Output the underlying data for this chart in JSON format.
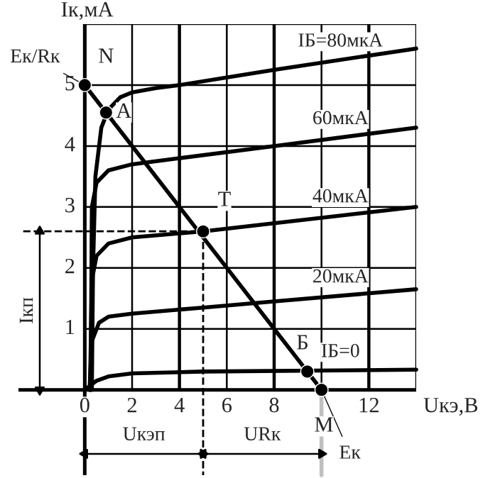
{
  "chart_data": {
    "type": "line",
    "xlabel": "Uкэ,В",
    "ylabel": "Iк,мА",
    "xlim": [
      -2.8,
      14
    ],
    "ylim": [
      -1.4,
      6
    ],
    "xticks": [
      0,
      2,
      4,
      6,
      8,
      {
        "value": 10,
        "label": null
      },
      12,
      {
        "value": 14,
        "label": null
      }
    ],
    "yticks": [
      {
        "value": 0,
        "label": null
      },
      1,
      2,
      3,
      4,
      5,
      {
        "value": 6,
        "label": null
      }
    ],
    "grid": true,
    "marker": "none",
    "line_style": "solid",
    "series": [
      {
        "name": "IБ=80мкА",
        "color": "#000000",
        "x": [
          0.3,
          0.35,
          0.45,
          0.7,
          1,
          1.5,
          2,
          3,
          4,
          8,
          14
        ],
        "values": [
          0,
          2,
          3.5,
          4.3,
          4.6,
          4.8,
          4.88,
          4.95,
          5.0,
          5.25,
          5.6
        ]
      },
      {
        "name": "60мкА",
        "color": "#000000",
        "x": [
          0.25,
          0.3,
          0.5,
          1,
          2,
          4,
          8,
          14
        ],
        "values": [
          0,
          3,
          3.4,
          3.6,
          3.7,
          3.8,
          4.0,
          4.3
        ]
      },
      {
        "name": "40мкА",
        "color": "#000000",
        "x": [
          0.22,
          0.3,
          0.5,
          1,
          2,
          5,
          14
        ],
        "values": [
          0,
          1.8,
          2.2,
          2.4,
          2.5,
          2.6,
          3.0
        ]
      },
      {
        "name": "20мкА",
        "color": "#000000",
        "x": [
          0.2,
          0.3,
          0.6,
          1,
          2,
          5,
          8,
          14
        ],
        "values": [
          0,
          0.8,
          1.1,
          1.2,
          1.25,
          1.35,
          1.45,
          1.65
        ]
      },
      {
        "name": "IБ=0",
        "color": "#000000",
        "x": [
          0,
          0.5,
          1,
          2,
          5,
          14
        ],
        "values": [
          0,
          0.15,
          0.22,
          0.27,
          0.3,
          0.33
        ]
      },
      {
        "color": "#000000",
        "x": [
          0,
          10
        ],
        "values": [
          5,
          0
        ]
      },
      {
        "type": "scatter",
        "marker": "circle",
        "color": "#000000",
        "x": [
          0,
          0.9,
          5,
          9.4,
          10
        ],
        "values": [
          5,
          4.55,
          2.6,
          0.3,
          0
        ]
      },
      {
        "line_style": "dashed",
        "color": "#000000",
        "x": [
          -2.6,
          5
        ],
        "values": [
          2.6,
          2.6
        ]
      },
      {
        "line_style": "dashed",
        "color": "#000000",
        "x": [
          5,
          5
        ],
        "values": [
          2.6,
          -1.4
        ]
      },
      {
        "color": "#c0c0c0",
        "x": [
          10,
          10
        ],
        "values": [
          0,
          -1.4
        ]
      },
      {
        "marker": "triangle",
        "color": "#000000",
        "x": [
          -1.9,
          -1.9
        ],
        "values": [
          0,
          2.6
        ]
      },
      {
        "marker": "triangle",
        "color": "#000000",
        "x": [
          0,
          5
        ],
        "values": [
          -1.05,
          -1.05
        ]
      },
      {
        "marker": "triangle",
        "color": "#000000",
        "x": [
          5,
          10
        ],
        "values": [
          -1.05,
          -1.05
        ]
      }
    ],
    "annotations": [
      {
        "text": "N",
        "x": 0,
        "y": 5
      },
      {
        "text": "A",
        "x": 0.9,
        "y": 4.55
      },
      {
        "text": "T",
        "x": 5,
        "y": 2.6
      },
      {
        "text": "Б",
        "x": 9.4,
        "y": 0.3
      },
      {
        "text": "M",
        "x": 10,
        "y": 0
      },
      {
        "text": "Eк/Rк",
        "x": 0,
        "y": 5
      },
      {
        "text": "Eк",
        "x": 10,
        "y": 0
      },
      {
        "text": "Iкп",
        "x": -1.9,
        "y": 1.3
      },
      {
        "text": "Uкэп",
        "x": 2.5,
        "y": -1.05
      },
      {
        "text": "URк",
        "x": 7.5,
        "y": -1.05
      }
    ]
  }
}
